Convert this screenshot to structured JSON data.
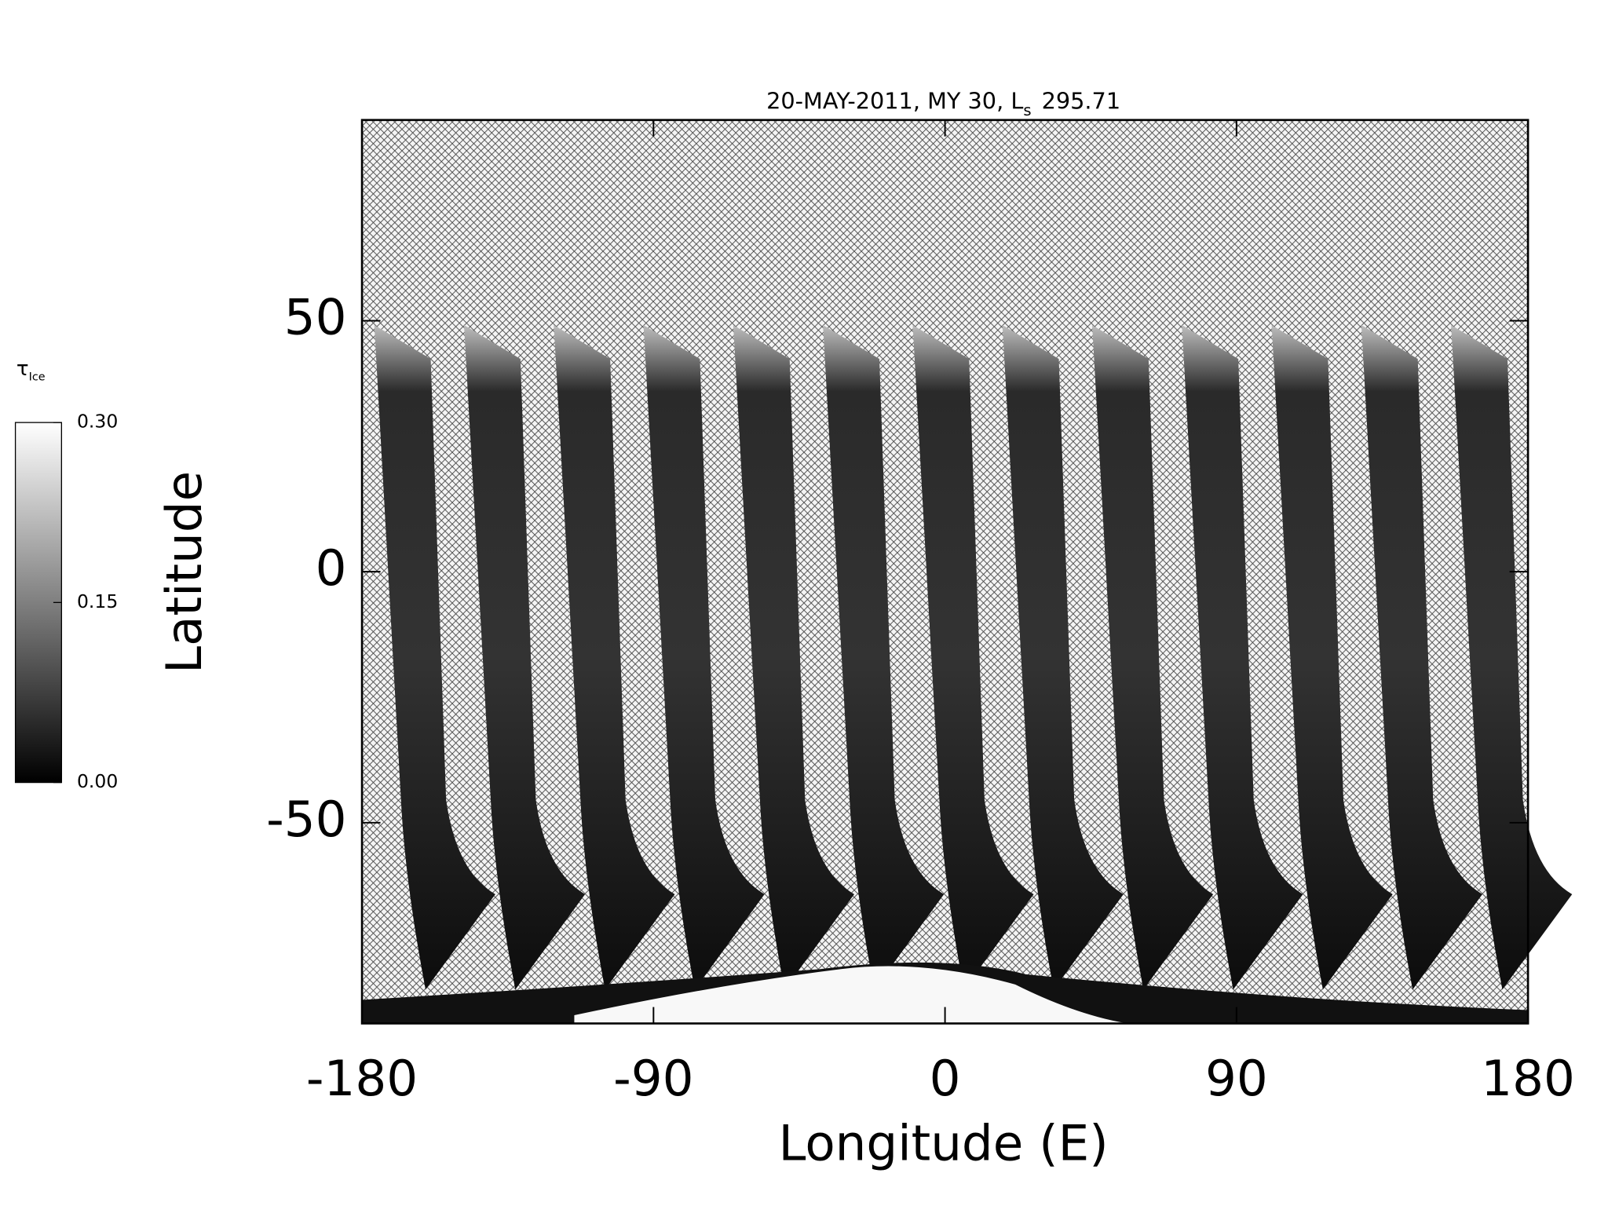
{
  "chart_data": {
    "type": "map",
    "title": "20-MAY-2011, MY 30,  L",
    "title_subscript": "s",
    "title_suffix": "295.71",
    "x_label": "Longitude (E)",
    "y_label": "Latitude",
    "xlim": [
      -180,
      180
    ],
    "xticks": [
      -180,
      -90,
      0,
      90,
      180
    ],
    "ylim": [
      -90,
      90
    ],
    "yticks": [
      -50,
      0,
      50
    ],
    "colorbar": {
      "title": "τ",
      "title_subscript": "Ice",
      "clim": [
        0,
        0.3
      ],
      "ticks": [
        {
          "value": 0.3,
          "label": "0.30"
        },
        {
          "value": 0.15,
          "label": "0.15"
        },
        {
          "value": 0,
          "label": "0.00"
        }
      ],
      "colors": [
        "#000000",
        "#ffffff"
      ]
    }
  }
}
